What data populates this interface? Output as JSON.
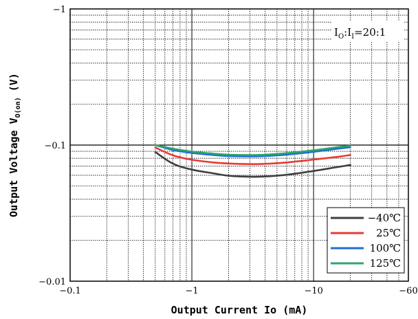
{
  "chart_data": {
    "type": "line",
    "title": "",
    "xlabel": "Output Current Io (mA)",
    "ylabel": "Output Voltage V",
    "ylabel_sub": "O(on)",
    "ylabel_unit": "(V)",
    "x_scale": "log",
    "y_scale": "log",
    "xlim": [
      0.1,
      60
    ],
    "ylim": [
      0.01,
      1
    ],
    "x_ticks": [
      {
        "value": 0.1,
        "label": "−0.1"
      },
      {
        "value": 1,
        "label": "−1"
      },
      {
        "value": 10,
        "label": "−10"
      },
      {
        "value": 60,
        "label": "−60"
      }
    ],
    "y_ticks": [
      {
        "value": 0.01,
        "label": "−0.01"
      },
      {
        "value": 0.1,
        "label": "−0.1"
      },
      {
        "value": 1,
        "label": "−1"
      }
    ],
    "grid": true,
    "legend_position": "bottom-right",
    "annotation": {
      "text": "I",
      "sub1": "O",
      "colon": ":",
      "text2": "I",
      "sub2": "I",
      "ratio": "=20:1"
    },
    "series": [
      {
        "name": "−40℃",
        "color": "#3f3f3f",
        "x": [
          0.5,
          0.7,
          1,
          1.5,
          2,
          3,
          4,
          6,
          10,
          15,
          20
        ],
        "y": [
          0.089,
          0.073,
          0.066,
          0.062,
          0.0595,
          0.0585,
          0.0588,
          0.0605,
          0.0645,
          0.0685,
          0.0715
        ]
      },
      {
        "name": "25℃",
        "color": "#e63b34",
        "x": [
          0.5,
          0.7,
          1,
          1.5,
          2,
          3,
          4,
          6,
          10,
          15,
          20
        ],
        "y": [
          0.096,
          0.084,
          0.078,
          0.0745,
          0.0732,
          0.0725,
          0.0728,
          0.0745,
          0.0782,
          0.0815,
          0.0845
        ]
      },
      {
        "name": "100℃",
        "color": "#1f6fd1",
        "x": [
          0.5,
          0.7,
          1,
          1.5,
          2,
          3,
          4,
          6,
          10,
          15,
          20
        ],
        "y": [
          0.1,
          0.092,
          0.0875,
          0.0845,
          0.083,
          0.0825,
          0.083,
          0.085,
          0.0892,
          0.0935,
          0.0965
        ]
      },
      {
        "name": "125℃",
        "color": "#2ca66a",
        "x": [
          0.5,
          0.7,
          1,
          1.5,
          2,
          3,
          4,
          6,
          10,
          15,
          20
        ],
        "y": [
          0.1,
          0.094,
          0.0895,
          0.0865,
          0.085,
          0.0845,
          0.085,
          0.0872,
          0.0915,
          0.096,
          0.099
        ]
      }
    ]
  }
}
